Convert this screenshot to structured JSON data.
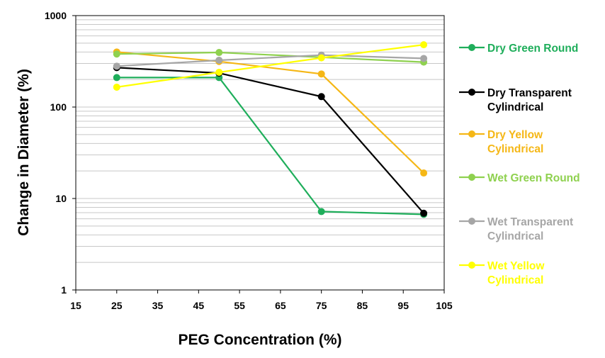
{
  "chart_data": {
    "type": "line",
    "title": "",
    "xlabel": "PEG Concentration (%)",
    "ylabel": "Change in Diameter (%)",
    "xlim": [
      15,
      105
    ],
    "ylim": [
      1,
      1000
    ],
    "y_scale": "log",
    "x_ticks": [
      15,
      25,
      35,
      45,
      55,
      65,
      75,
      85,
      95,
      105
    ],
    "y_ticks": [
      1,
      10,
      100,
      1000
    ],
    "grid": "horizontal minor log gridlines",
    "legend_position": "right",
    "x": [
      25,
      50,
      75,
      100
    ],
    "series": [
      {
        "name": "Dry Green Round",
        "legend_lines": [
          "Dry Green Round"
        ],
        "color": "#1fae5b",
        "values": [
          210,
          210,
          7.2,
          6.7
        ]
      },
      {
        "name": "Dry Transparent Cylindrical",
        "legend_lines": [
          "Dry Transparent",
          "Cylindrical"
        ],
        "color": "#000000",
        "values": [
          270,
          235,
          130,
          6.9
        ]
      },
      {
        "name": "Dry Yellow Cylindrical",
        "legend_lines": [
          "Dry Yellow",
          "Cylindrical"
        ],
        "color": "#f5b716",
        "values": [
          400,
          315,
          230,
          19
        ]
      },
      {
        "name": "Wet Green Round",
        "legend_lines": [
          "Wet Green Round"
        ],
        "color": "#8fd14f",
        "values": [
          380,
          395,
          350,
          310
        ]
      },
      {
        "name": "Wet Transparent Cylindrical",
        "legend_lines": [
          "Wet Transparent",
          "Cylindrical"
        ],
        "color": "#a6a6a6",
        "values": [
          280,
          325,
          370,
          340
        ]
      },
      {
        "name": "Wet Yellow Cylindrical",
        "legend_lines": [
          "Wet Yellow",
          "Cylindrical"
        ],
        "color": "#ffff00",
        "values": [
          165,
          240,
          345,
          480
        ]
      }
    ]
  }
}
